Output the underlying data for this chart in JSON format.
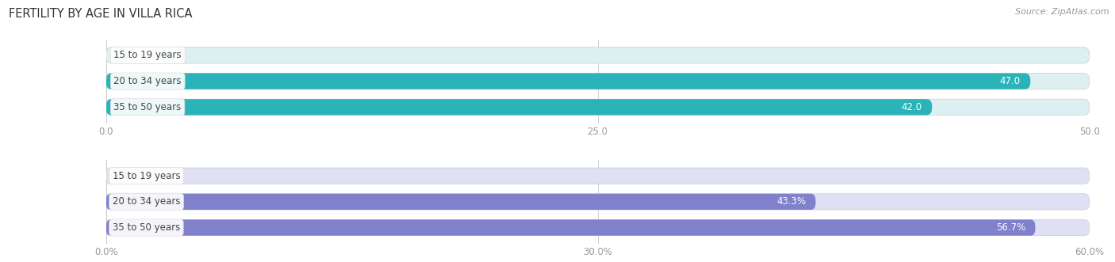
{
  "title": "FERTILITY BY AGE IN VILLA RICA",
  "source": "Source: ZipAtlas.com",
  "top_chart": {
    "categories": [
      "15 to 19 years",
      "20 to 34 years",
      "35 to 50 years"
    ],
    "values": [
      0.0,
      47.0,
      42.0
    ],
    "x_max": 50.0,
    "x_ticks": [
      0.0,
      25.0,
      50.0
    ],
    "x_tick_labels": [
      "0.0",
      "25.0",
      "50.0"
    ],
    "bar_color": "#2ab3b8",
    "bar_bg_color": "#ddf0f1",
    "label_value_threshold_pct": 0.15
  },
  "bottom_chart": {
    "categories": [
      "15 to 19 years",
      "20 to 34 years",
      "35 to 50 years"
    ],
    "values": [
      0.0,
      43.3,
      56.7
    ],
    "x_max": 60.0,
    "x_ticks": [
      0.0,
      30.0,
      60.0
    ],
    "x_tick_labels": [
      "0.0%",
      "30.0%",
      "60.0%"
    ],
    "bar_color": "#8080cc",
    "bar_bg_color": "#e0e0f4",
    "label_value_threshold_pct": 0.15
  },
  "fig_bg_color": "#ffffff",
  "bar_height": 0.62,
  "label_fontsize": 8.5,
  "category_fontsize": 8.5,
  "title_fontsize": 10.5,
  "source_fontsize": 8.0,
  "grid_color": "#c8c8c8",
  "text_color": "#444444",
  "tick_color": "#999999"
}
